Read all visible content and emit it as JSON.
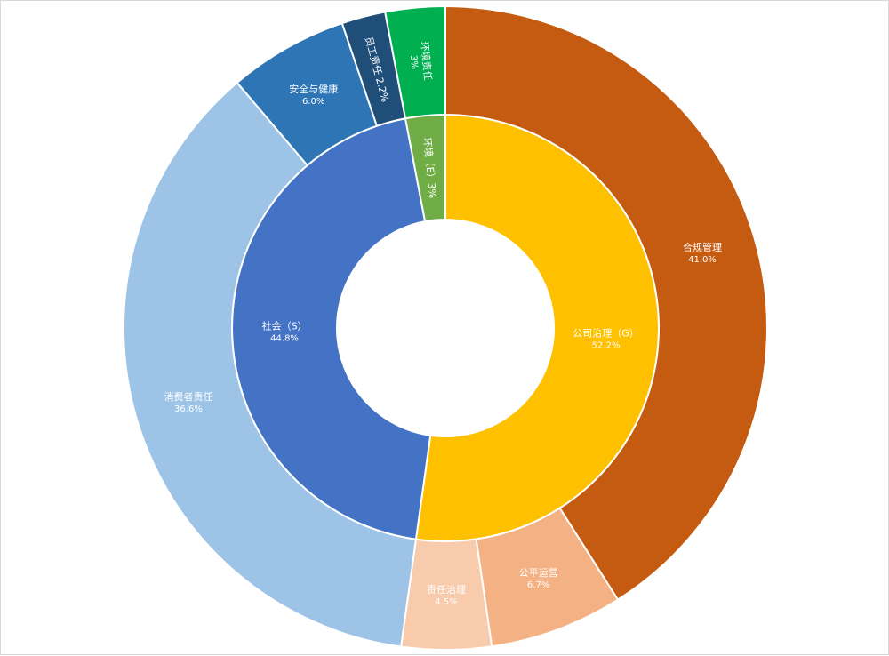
{
  "chart_data": {
    "type": "sunburst",
    "title": "",
    "inner_ring": [
      {
        "label": "公司治理（G）",
        "value_text": "52.2%",
        "value": 52.2,
        "color": "#FFC000"
      },
      {
        "label": "社会（S）",
        "value_text": "44.8%",
        "value": 44.8,
        "color": "#4472C4"
      },
      {
        "label": "环境（E）3%",
        "value_text": "",
        "value": 3.0,
        "color": "#70AD47"
      }
    ],
    "outer_ring": [
      {
        "label": "合规管理",
        "value_text": "41.0%",
        "value": 41.0,
        "parent": "公司治理（G）",
        "color": "#C55A11"
      },
      {
        "label": "公平运营",
        "value_text": "6.7%",
        "value": 6.7,
        "parent": "公司治理（G）",
        "color": "#F4B183"
      },
      {
        "label": "责任治理",
        "value_text": "4.5%",
        "value": 4.5,
        "parent": "公司治理（G）",
        "color": "#F8CBAD"
      },
      {
        "label": "消费者责任",
        "value_text": "36.6%",
        "value": 36.6,
        "parent": "社会（S）",
        "color": "#9DC3E6"
      },
      {
        "label": "安全与健康",
        "value_text": "6.0%",
        "value": 6.0,
        "parent": "社会（S）",
        "color": "#2E75B6"
      },
      {
        "label": "员工责任 2.2%",
        "value_text": "",
        "value": 2.2,
        "parent": "社会（S）",
        "color": "#1F4E79"
      },
      {
        "label": "环境责任",
        "value_text": "3%",
        "value": 3.0,
        "parent": "环境（E）3%",
        "color": "#00B050"
      }
    ]
  }
}
